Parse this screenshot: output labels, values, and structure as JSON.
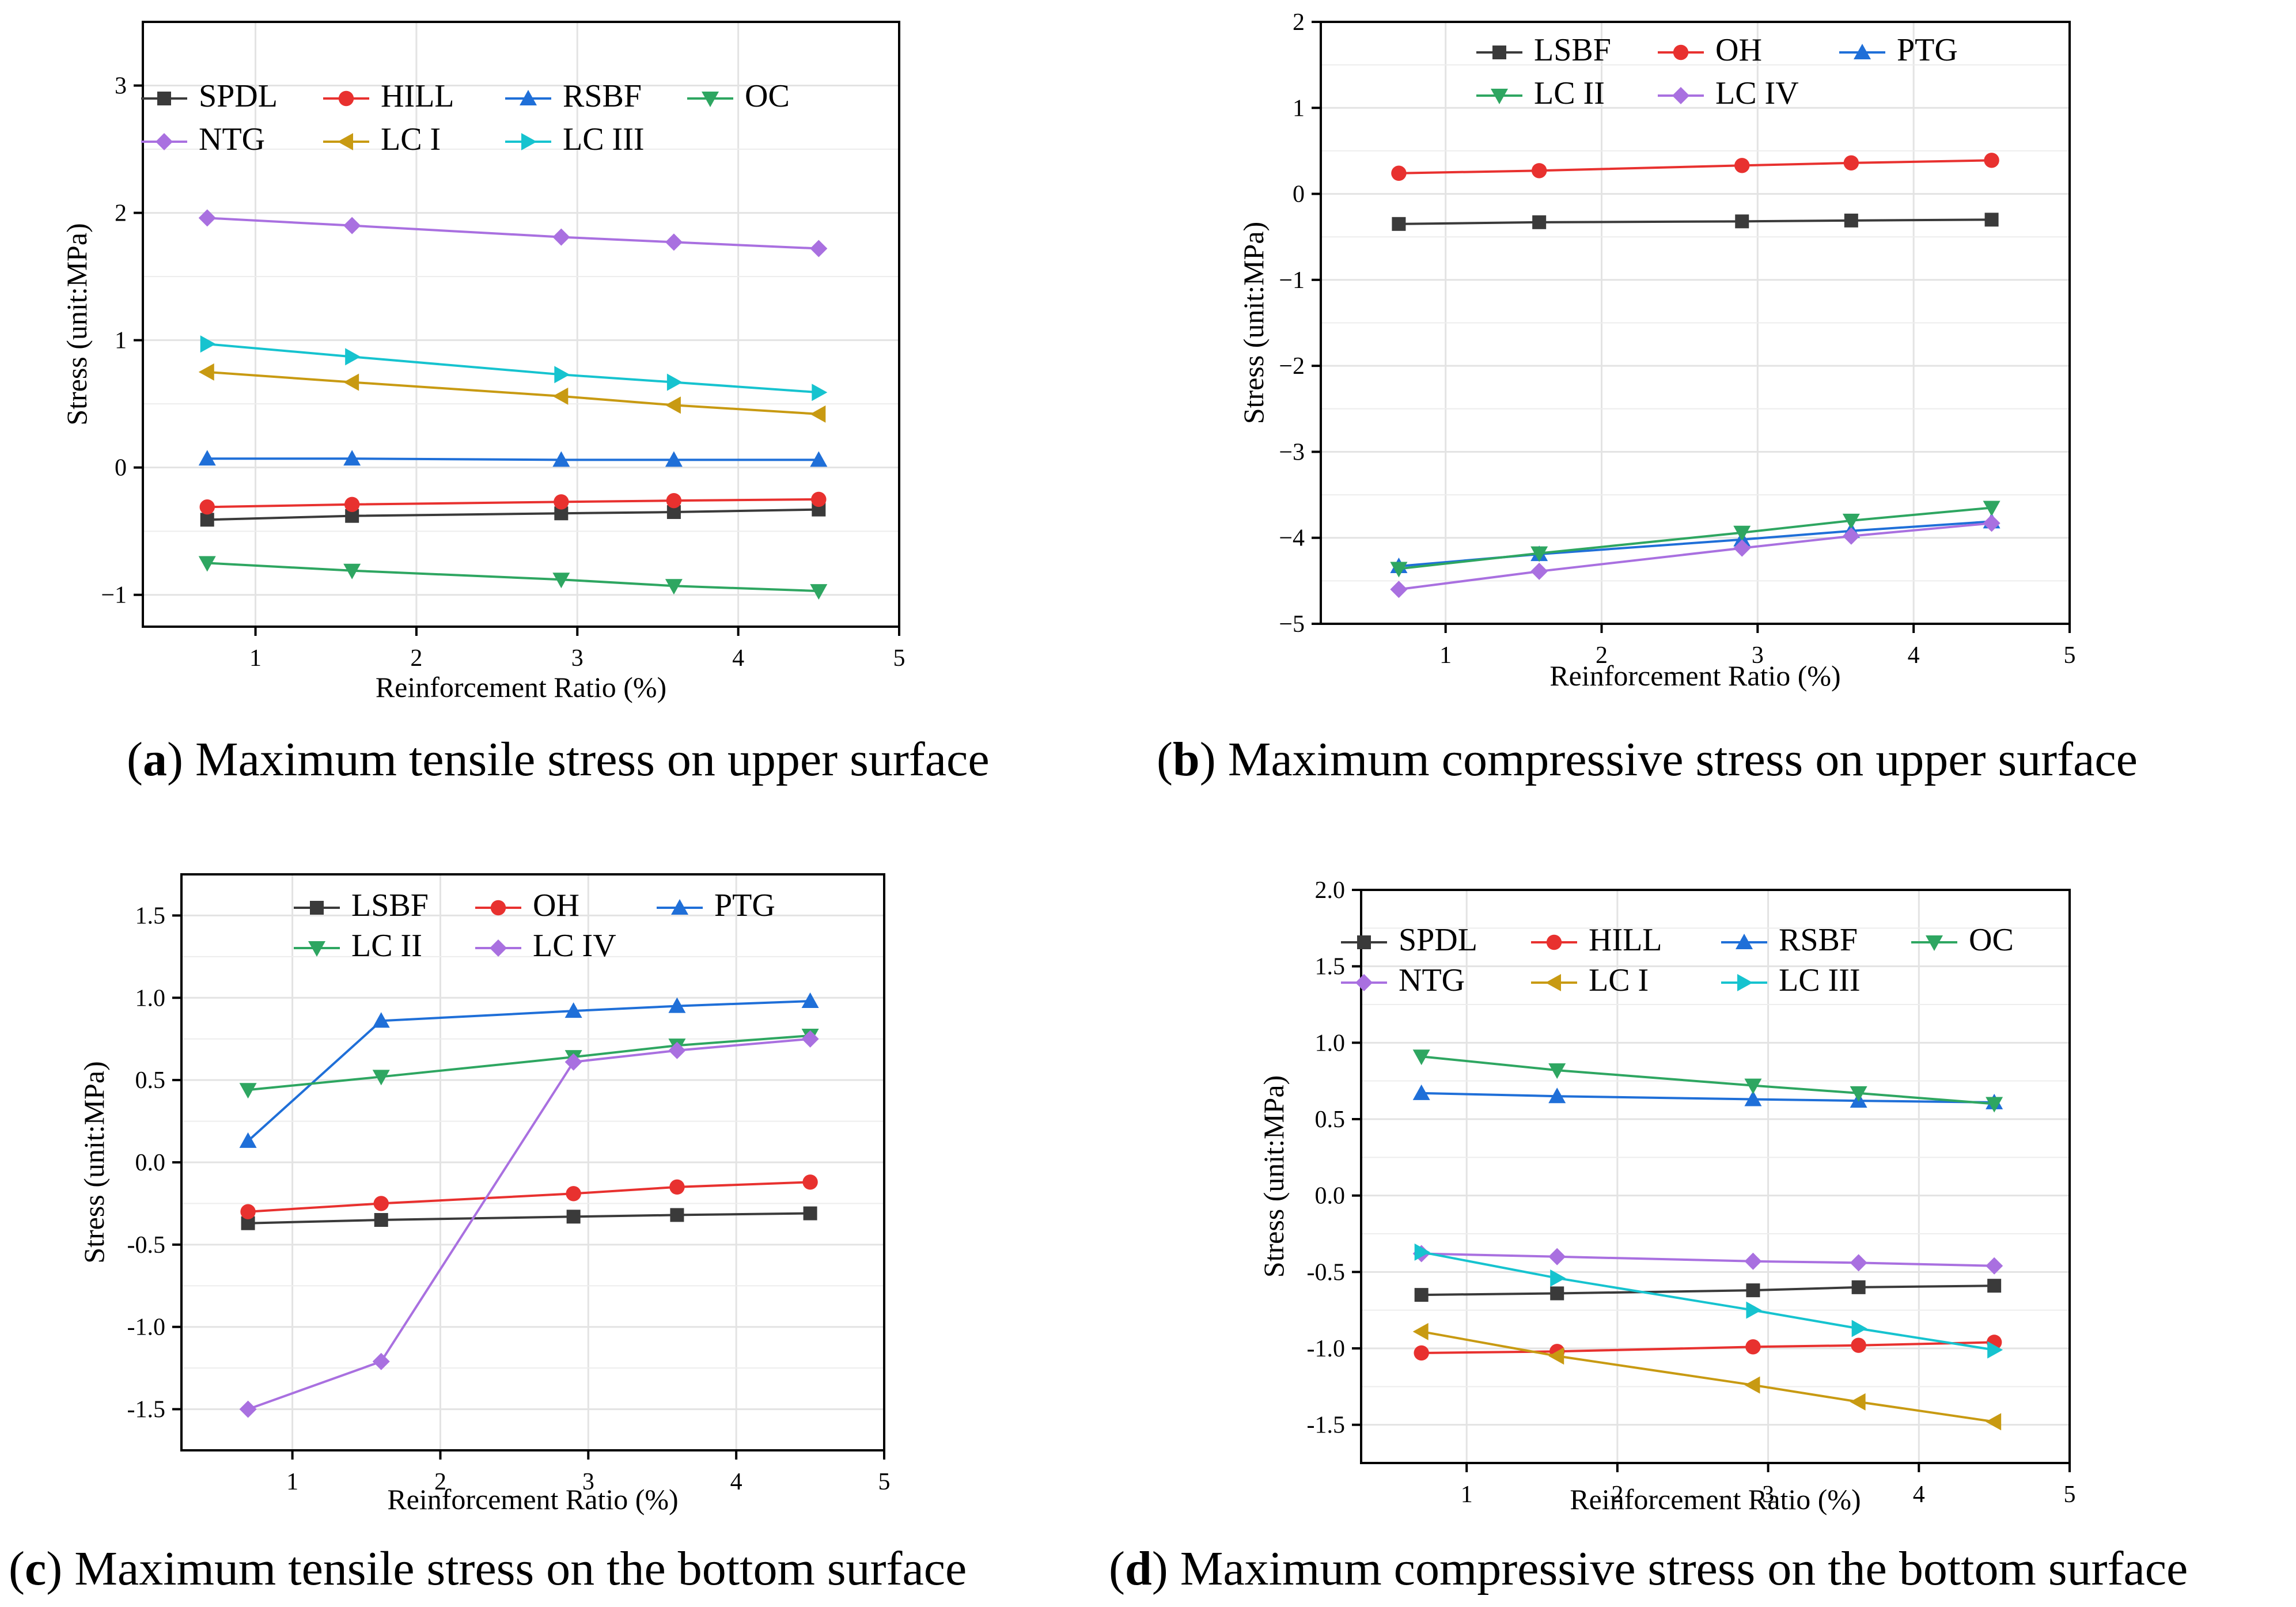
{
  "chart_data": [
    {
      "id": "a",
      "type": "line",
      "title": "",
      "xlabel": "Reinforcement Ratio (%)",
      "ylabel": "Stress (unit:MPa)",
      "xlim": [
        0.3,
        5
      ],
      "ylim": [
        -1.25,
        3.5
      ],
      "xticks": [
        1,
        2,
        3,
        4,
        5
      ],
      "yticks": [
        -1,
        0,
        1,
        2,
        3
      ],
      "xticklabels": [
        "1",
        "2",
        "3",
        "4",
        "5"
      ],
      "yticklabels": [
        "−1",
        "0",
        "1",
        "2",
        "3"
      ],
      "legend": {
        "position": "top",
        "rows": [
          [
            "SPDL",
            "HILL",
            "RSBF",
            "OC"
          ],
          [
            "NTG",
            "LC I",
            "LC III"
          ]
        ]
      },
      "x": [
        0.7,
        1.6,
        2.9,
        3.6,
        4.5
      ],
      "series": [
        {
          "name": "SPDL",
          "color": "#3a3a3a",
          "marker": "square",
          "values": [
            -0.41,
            -0.38,
            -0.36,
            -0.35,
            -0.33
          ]
        },
        {
          "name": "HILL",
          "color": "#e8312f",
          "marker": "circle",
          "values": [
            -0.31,
            -0.29,
            -0.27,
            -0.26,
            -0.25
          ]
        },
        {
          "name": "RSBF",
          "color": "#1f6fd8",
          "marker": "triangle-up",
          "values": [
            0.07,
            0.07,
            0.06,
            0.06,
            0.06
          ]
        },
        {
          "name": "OC",
          "color": "#2ea661",
          "marker": "triangle-down",
          "values": [
            -0.75,
            -0.81,
            -0.88,
            -0.93,
            -0.97
          ]
        },
        {
          "name": "NTG",
          "color": "#a970e0",
          "marker": "diamond",
          "values": [
            1.96,
            1.9,
            1.81,
            1.77,
            1.72
          ]
        },
        {
          "name": "LC I",
          "color": "#c89a12",
          "marker": "triangle-left",
          "values": [
            0.75,
            0.67,
            0.56,
            0.49,
            0.42
          ]
        },
        {
          "name": "LC III",
          "color": "#16c3cf",
          "marker": "triangle-right",
          "values": [
            0.97,
            0.87,
            0.73,
            0.67,
            0.59
          ]
        }
      ],
      "caption_letter": "a",
      "caption_text": "Maximum tensile stress on upper surface"
    },
    {
      "id": "b",
      "type": "line",
      "title": "",
      "xlabel": "Reinforcement Ratio (%)",
      "ylabel": "Stress (unit:MPa)",
      "xlim": [
        0.2,
        5
      ],
      "ylim": [
        -5,
        2
      ],
      "xticks": [
        1,
        2,
        3,
        4,
        5
      ],
      "yticks": [
        -5,
        -4,
        -3,
        -2,
        -1,
        0,
        1,
        2
      ],
      "xticklabels": [
        "1",
        "2",
        "3",
        "4",
        "5"
      ],
      "yticklabels": [
        "−5",
        "−4",
        "−3",
        "−2",
        "−1",
        "0",
        "1",
        "2"
      ],
      "legend": {
        "position": "top",
        "rows": [
          [
            "LSBF",
            "OH",
            "PTG"
          ],
          [
            "LC II",
            "LC IV"
          ]
        ]
      },
      "x": [
        0.7,
        1.6,
        2.9,
        3.6,
        4.5
      ],
      "series": [
        {
          "name": "LSBF",
          "color": "#3a3a3a",
          "marker": "square",
          "values": [
            -0.35,
            -0.33,
            -0.32,
            -0.31,
            -0.3
          ]
        },
        {
          "name": "OH",
          "color": "#e8312f",
          "marker": "circle",
          "values": [
            0.24,
            0.27,
            0.33,
            0.36,
            0.39
          ]
        },
        {
          "name": "PTG",
          "color": "#1f6fd8",
          "marker": "triangle-up",
          "values": [
            -4.33,
            -4.19,
            -4.02,
            -3.92,
            -3.81
          ]
        },
        {
          "name": "LC II",
          "color": "#2ea661",
          "marker": "triangle-down",
          "values": [
            -4.36,
            -4.18,
            -3.94,
            -3.8,
            -3.65
          ]
        },
        {
          "name": "LC IV",
          "color": "#a970e0",
          "marker": "diamond",
          "values": [
            -4.6,
            -4.39,
            -4.12,
            -3.98,
            -3.83
          ]
        }
      ],
      "caption_letter": "b",
      "caption_text": "Maximum compressive stress on upper surface"
    },
    {
      "id": "c",
      "type": "line",
      "title": "",
      "xlabel": "Reinforcement Ratio (%)",
      "ylabel": "Stress (unit:MPa)",
      "xlim": [
        0.25,
        5
      ],
      "ylim": [
        -1.75,
        1.75
      ],
      "xticks": [
        1,
        2,
        3,
        4,
        5
      ],
      "yticks": [
        -1.5,
        -1.0,
        -0.5,
        0.0,
        0.5,
        1.0,
        1.5
      ],
      "xticklabels": [
        "1",
        "2",
        "3",
        "4",
        "5"
      ],
      "yticklabels": [
        "-1.5",
        "-1.0",
        "-0.5",
        "0.0",
        "0.5",
        "1.0",
        "1.5"
      ],
      "legend": {
        "position": "top",
        "rows": [
          [
            "LSBF",
            "OH",
            "PTG"
          ],
          [
            "LC II",
            "LC IV"
          ]
        ]
      },
      "x": [
        0.7,
        1.6,
        2.9,
        3.6,
        4.5
      ],
      "series": [
        {
          "name": "LSBF",
          "color": "#3a3a3a",
          "marker": "square",
          "values": [
            -0.37,
            -0.35,
            -0.33,
            -0.32,
            -0.31
          ]
        },
        {
          "name": "OH",
          "color": "#e8312f",
          "marker": "circle",
          "values": [
            -0.3,
            -0.25,
            -0.19,
            -0.15,
            -0.12
          ]
        },
        {
          "name": "PTG",
          "color": "#1f6fd8",
          "marker": "triangle-up",
          "values": [
            0.13,
            0.86,
            0.92,
            0.95,
            0.98
          ]
        },
        {
          "name": "LC II",
          "color": "#2ea661",
          "marker": "triangle-down",
          "values": [
            0.44,
            0.52,
            0.64,
            0.71,
            0.77
          ]
        },
        {
          "name": "LC IV",
          "color": "#a970e0",
          "marker": "diamond",
          "values": [
            -1.5,
            -1.21,
            0.61,
            0.68,
            0.75
          ]
        }
      ],
      "caption_letter": "c",
      "caption_text": "Maximum tensile stress on the bottom surface"
    },
    {
      "id": "d",
      "type": "line",
      "title": "",
      "xlabel": "Reinforcement Ratio (%)",
      "ylabel": "Stress (unit:MPa)",
      "xlim": [
        0.3,
        5
      ],
      "ylim": [
        -1.75,
        2.0
      ],
      "xticks": [
        1,
        2,
        3,
        4,
        5
      ],
      "yticks": [
        -1.5,
        -1.0,
        -0.5,
        0.0,
        0.5,
        1.0,
        1.5,
        2.0
      ],
      "xticklabels": [
        "1",
        "2",
        "3",
        "4",
        "5"
      ],
      "yticklabels": [
        "-1.5",
        "-1.0",
        "-0.5",
        "0.0",
        "0.5",
        "1.0",
        "1.5",
        "2.0"
      ],
      "legend": {
        "position": "top",
        "rows": [
          [
            "SPDL",
            "HILL",
            "RSBF",
            "OC"
          ],
          [
            "NTG",
            "LC I",
            "LC III"
          ]
        ]
      },
      "x": [
        0.7,
        1.6,
        2.9,
        3.6,
        4.5
      ],
      "series": [
        {
          "name": "SPDL",
          "color": "#3a3a3a",
          "marker": "square",
          "values": [
            -0.65,
            -0.64,
            -0.62,
            -0.6,
            -0.59
          ]
        },
        {
          "name": "HILL",
          "color": "#e8312f",
          "marker": "circle",
          "values": [
            -1.03,
            -1.02,
            -0.99,
            -0.98,
            -0.96
          ]
        },
        {
          "name": "RSBF",
          "color": "#1f6fd8",
          "marker": "triangle-up",
          "values": [
            0.67,
            0.65,
            0.63,
            0.62,
            0.61
          ]
        },
        {
          "name": "OC",
          "color": "#2ea661",
          "marker": "triangle-down",
          "values": [
            0.91,
            0.82,
            0.72,
            0.67,
            0.6
          ]
        },
        {
          "name": "NTG",
          "color": "#a970e0",
          "marker": "diamond",
          "values": [
            -0.38,
            -0.4,
            -0.43,
            -0.44,
            -0.46
          ]
        },
        {
          "name": "LC I",
          "color": "#c89a12",
          "marker": "triangle-left",
          "values": [
            -0.89,
            -1.05,
            -1.24,
            -1.35,
            -1.48
          ]
        },
        {
          "name": "LC III",
          "color": "#16c3cf",
          "marker": "triangle-right",
          "values": [
            -0.37,
            -0.54,
            -0.75,
            -0.87,
            -1.01
          ]
        }
      ],
      "caption_letter": "d",
      "caption_text": "Maximum compressive stress on the bottom surface"
    }
  ]
}
